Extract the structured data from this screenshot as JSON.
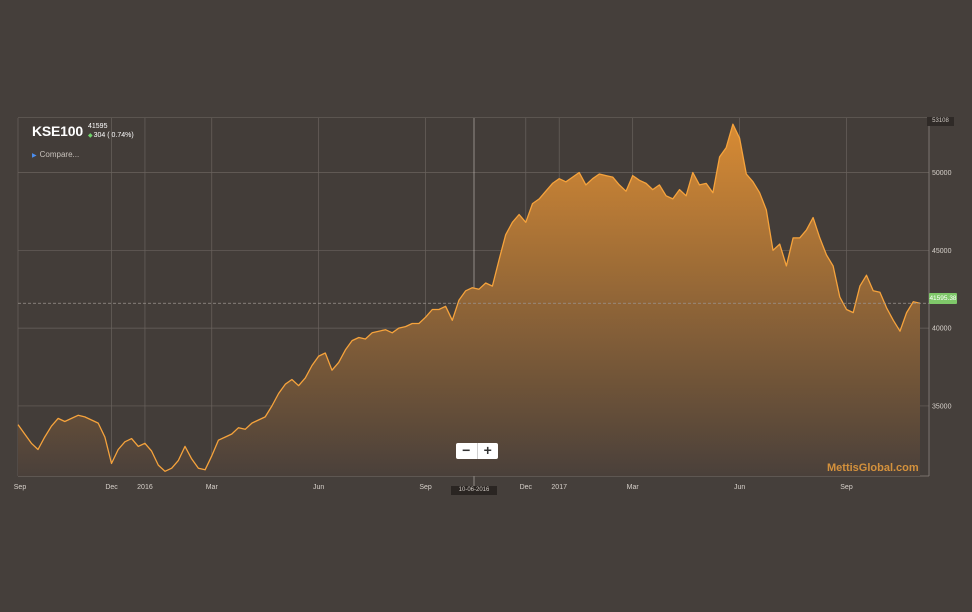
{
  "header": {
    "ticker": "KSE100",
    "last_value": "41595",
    "change": "304 ( 0.74%)"
  },
  "compare_label": "Compare...",
  "zoom": {
    "out_symbol": "−",
    "in_symbol": "+"
  },
  "watermark": "MettisGlobal.com",
  "crosshair_date": "10-06-2016",
  "current_value_label": "41595.38",
  "ymax_label": "53108",
  "colors": {
    "line": "#f6a33c",
    "fill_top": "#d88b34",
    "fill_bottom": "#4a403a",
    "background": "#453f3b"
  },
  "chart_data": {
    "type": "area",
    "title": "",
    "xlabel": "",
    "ylabel": "",
    "ylim": [
      30500,
      53500
    ],
    "y_ticks": [
      35000,
      40000,
      45000,
      50000
    ],
    "x_ticks": [
      {
        "label": "Sep",
        "index": 0
      },
      {
        "label": "Dec",
        "index": 14
      },
      {
        "label": "2016",
        "index": 19
      },
      {
        "label": "Mar",
        "index": 29
      },
      {
        "label": "Jun",
        "index": 45
      },
      {
        "label": "Sep",
        "index": 61
      },
      {
        "label": "Dec",
        "index": 76
      },
      {
        "label": "2017",
        "index": 81
      },
      {
        "label": "Mar",
        "index": 92
      },
      {
        "label": "Jun",
        "index": 108
      },
      {
        "label": "Sep",
        "index": 124
      }
    ],
    "series": [
      {
        "values": [
          33800,
          33200,
          32600,
          32200,
          33000,
          33700,
          34200,
          34000,
          34200,
          34400,
          34300,
          34100,
          33900,
          33000,
          31300,
          32200,
          32700,
          32900,
          32400,
          32600,
          32100,
          31200,
          30800,
          31000,
          31500,
          32400,
          31600,
          31000,
          30900,
          31800,
          32800,
          33000,
          33200,
          33600,
          33500,
          33900,
          34100,
          34300,
          35000,
          35800,
          36400,
          36700,
          36300,
          36800,
          37600,
          38200,
          38400,
          37300,
          37800,
          38600,
          39200,
          39400,
          39300,
          39700,
          39800,
          39900,
          39700,
          40000,
          40100,
          40300,
          40300,
          40700,
          41200,
          41200,
          41400,
          40500,
          41800,
          42400,
          42600,
          42500,
          42900,
          42700,
          44400,
          46000,
          46800,
          47300,
          46800,
          48000,
          48300,
          48800,
          49300,
          49600,
          49400,
          49700,
          50000,
          49200,
          49600,
          49900,
          49800,
          49700,
          49200,
          48800,
          49800,
          49500,
          49300,
          48900,
          49200,
          48500,
          48300,
          48900,
          48500,
          50000,
          49200,
          49300,
          48700,
          51000,
          51600,
          53100,
          52200,
          49900,
          49400,
          48700,
          47600,
          45000,
          45400,
          44000,
          45800,
          45800,
          46300,
          47100,
          45800,
          44700,
          44000,
          42000,
          41200,
          41000,
          42700,
          43400,
          42400,
          42300,
          41300,
          40500,
          39800,
          41000,
          41700,
          41600
        ]
      }
    ]
  }
}
